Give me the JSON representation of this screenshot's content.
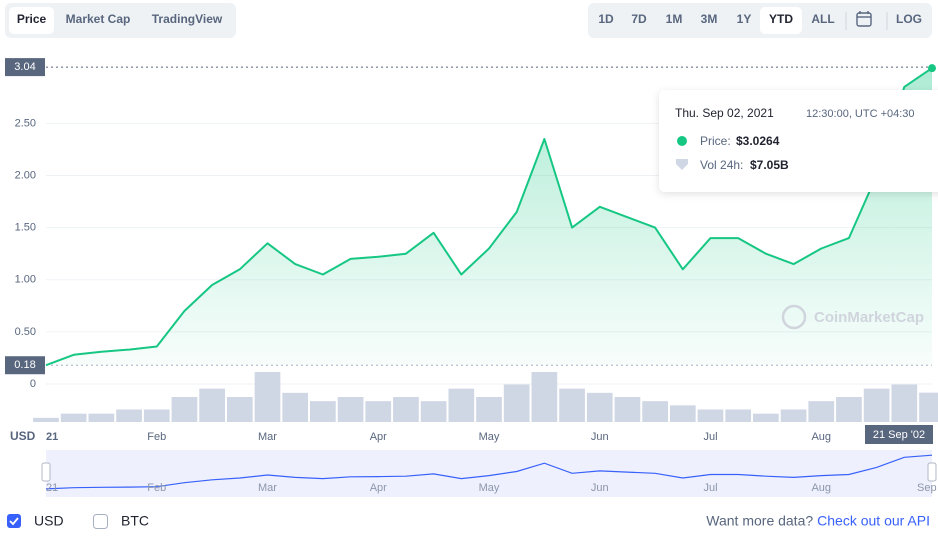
{
  "toolbar": {
    "tabs": [
      "Price",
      "Market Cap",
      "TradingView"
    ],
    "ranges": [
      "1D",
      "7D",
      "1M",
      "3M",
      "1Y",
      "YTD",
      "ALL"
    ],
    "scale_toggle": "LOG"
  },
  "chart_data": {
    "type": "line",
    "y_axis_label": "USD",
    "categories": [
      "21",
      null,
      null,
      null,
      "Feb",
      null,
      null,
      null,
      "Mar",
      null,
      null,
      null,
      "Apr",
      null,
      null,
      null,
      "May",
      null,
      null,
      null,
      "Jun",
      null,
      null,
      null,
      "Jul",
      null,
      null,
      null,
      "Aug",
      null,
      null,
      null,
      null
    ],
    "values": [
      0.18,
      0.28,
      0.31,
      0.33,
      0.36,
      0.7,
      0.95,
      1.1,
      1.35,
      1.15,
      1.05,
      1.2,
      1.22,
      1.25,
      1.45,
      1.05,
      1.3,
      1.65,
      2.35,
      1.5,
      1.7,
      1.6,
      1.5,
      1.1,
      1.4,
      1.4,
      1.25,
      1.15,
      1.3,
      1.4,
      2.0,
      2.85,
      3.03
    ],
    "color": "#16c784",
    "volume_values": [
      1,
      2,
      2,
      3,
      3,
      6,
      8,
      6,
      12,
      7,
      5,
      6,
      5,
      6,
      5,
      8,
      6,
      9,
      12,
      8,
      7,
      6,
      5,
      4,
      3,
      3,
      2,
      3,
      5,
      6,
      8,
      9,
      7.05
    ],
    "volume_color": "#cfd6e4",
    "navigator_color": "#3861fb",
    "navigator_end_label": "Sep",
    "ylim": [
      0,
      3.3
    ],
    "yticks": [
      0,
      {
        "value": 0.5,
        "label": "0.50"
      },
      {
        "value": 1,
        "label": "1.00"
      },
      {
        "value": 1.5,
        "label": "1.50"
      },
      {
        "value": 2,
        "label": "2.00"
      },
      {
        "value": 2.5,
        "label": "2.50"
      }
    ],
    "grid": true,
    "current_label": 3.04,
    "low_label": 0.18,
    "crosshair_label": "21 Sep '02",
    "watermark": "CoinMarketCap",
    "tooltip": {
      "date": "Thu. Sep 02, 2021",
      "time": "12:30:00, UTC +04:30",
      "price_label": "Price:",
      "price": "$3.0264",
      "volume_label": "Vol 24h:",
      "volume": "$7.05B"
    }
  },
  "footer": {
    "currencies": [
      "USD",
      "BTC"
    ],
    "api_prompt": "Want more data?",
    "api_link": "Check out our API"
  }
}
